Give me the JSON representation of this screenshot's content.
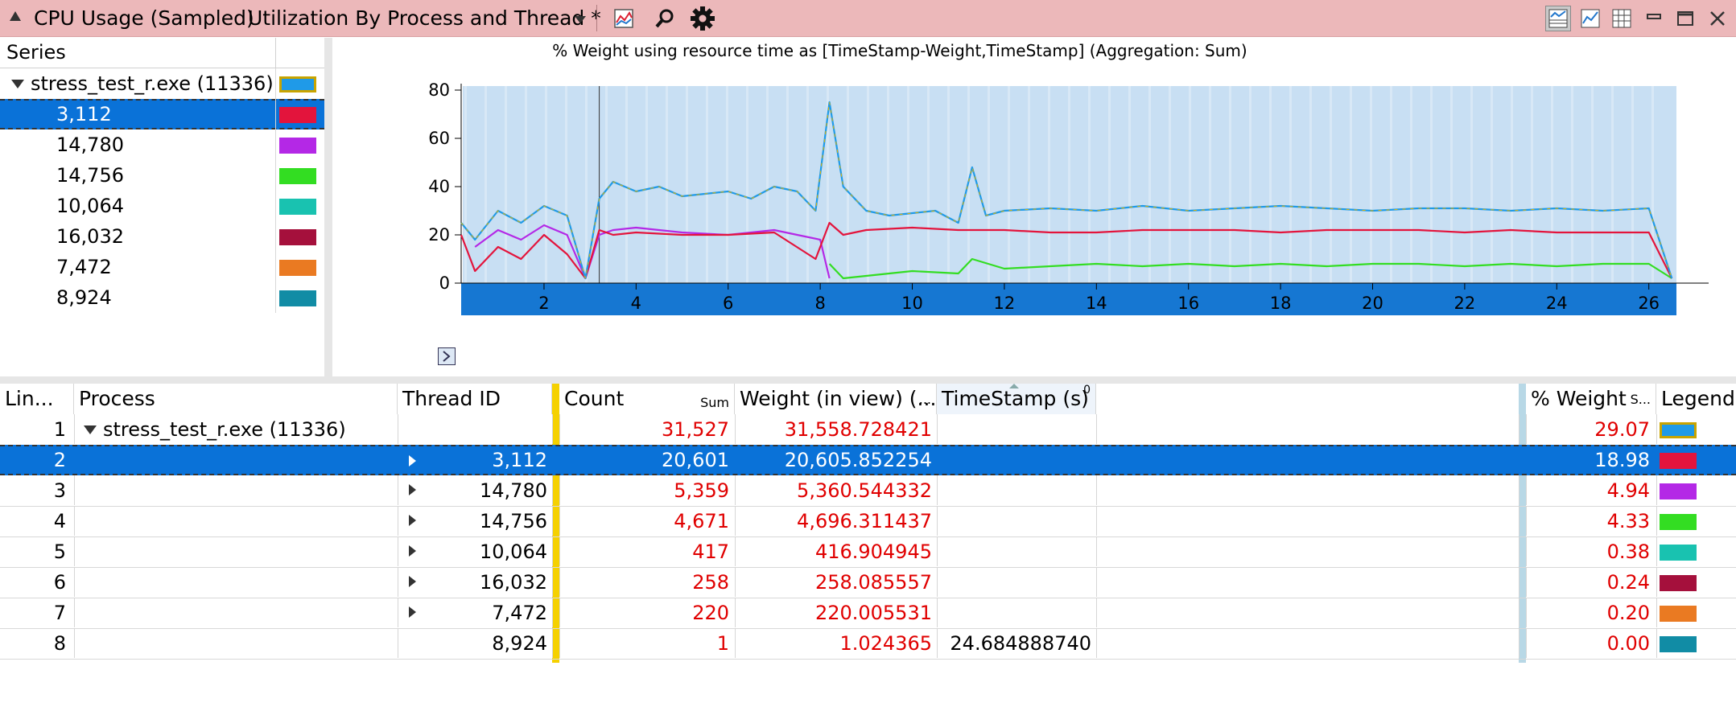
{
  "titlebar": {
    "graph_name": "CPU Usage (Sampled)",
    "preset": "Utilization By Process and Thread *"
  },
  "series_pane": {
    "header": "Series",
    "process": {
      "label": "stress_test_r.exe (11336)",
      "color": "#1f9ae8"
    },
    "threads": [
      {
        "label": "3,112",
        "color": "#e3143c"
      },
      {
        "label": "14,780",
        "color": "#b428e6"
      },
      {
        "label": "14,756",
        "color": "#33dd22"
      },
      {
        "label": "10,064",
        "color": "#19c2b0"
      },
      {
        "label": "16,032",
        "color": "#a5103c"
      },
      {
        "label": "7,472",
        "color": "#ea7a22"
      },
      {
        "label": "8,924",
        "color": "#118ca5"
      }
    ]
  },
  "chart_data": {
    "type": "line",
    "title": "% Weight using resource time as [TimeStamp-Weight,TimeStamp] (Aggregation: Sum)",
    "ylim": [
      0,
      80
    ],
    "yticks": [
      "0",
      "20",
      "40",
      "60",
      "80"
    ],
    "xlim": [
      0.2,
      26.6
    ],
    "xticks": [
      "2",
      "4",
      "6",
      "8",
      "10",
      "12",
      "14",
      "16",
      "18",
      "20",
      "22",
      "24",
      "26"
    ],
    "xtick_values": [
      2,
      4,
      6,
      8,
      10,
      12,
      14,
      16,
      18,
      20,
      22,
      24,
      26
    ],
    "series": [
      {
        "name": "stress_test_r.exe (11336)",
        "color": "#1f9ae8",
        "x": [
          0.2,
          0.5,
          1.0,
          1.5,
          2.0,
          2.5,
          2.9,
          3.2,
          3.5,
          4.0,
          4.5,
          5.0,
          5.5,
          6.0,
          6.5,
          7.0,
          7.5,
          7.9,
          8.2,
          8.5,
          9.0,
          9.5,
          10.0,
          10.5,
          11.0,
          11.3,
          11.6,
          12.0,
          13.0,
          14.0,
          15.0,
          16.0,
          17.0,
          18.0,
          19.0,
          20.0,
          21.0,
          22.0,
          23.0,
          24.0,
          25.0,
          26.0,
          26.5
        ],
        "y": [
          25,
          18,
          30,
          25,
          32,
          28,
          2,
          35,
          42,
          38,
          40,
          36,
          37,
          38,
          35,
          40,
          38,
          30,
          75,
          40,
          30,
          28,
          29,
          30,
          25,
          48,
          28,
          30,
          31,
          30,
          32,
          30,
          31,
          32,
          31,
          30,
          31,
          31,
          30,
          31,
          30,
          31,
          2
        ]
      },
      {
        "name": "3,112",
        "color": "#e3143c",
        "x": [
          0.2,
          0.5,
          1.0,
          1.5,
          2.0,
          2.5,
          2.9,
          3.2,
          3.5,
          4.0,
          5.0,
          6.0,
          7.0,
          7.9,
          8.2,
          8.5,
          9.0,
          10.0,
          11.0,
          12.0,
          13.0,
          14.0,
          15.0,
          16.0,
          17.0,
          18.0,
          19.0,
          20.0,
          21.0,
          22.0,
          23.0,
          24.0,
          25.0,
          26.0,
          26.5
        ],
        "y": [
          20,
          5,
          15,
          10,
          20,
          12,
          2,
          22,
          20,
          21,
          20,
          20,
          21,
          10,
          25,
          20,
          22,
          23,
          22,
          22,
          21,
          21,
          22,
          22,
          22,
          21,
          22,
          22,
          22,
          21,
          22,
          21,
          21,
          21,
          2
        ]
      },
      {
        "name": "14,780",
        "color": "#b428e6",
        "x": [
          0.5,
          1.0,
          1.5,
          2.0,
          2.5,
          2.9,
          3.2,
          3.5,
          4.0,
          5.0,
          6.0,
          7.0,
          7.5,
          8.0,
          8.2
        ],
        "y": [
          15,
          22,
          18,
          24,
          20,
          2,
          20,
          22,
          23,
          21,
          20,
          22,
          20,
          18,
          2
        ]
      },
      {
        "name": "14,756",
        "color": "#33dd22",
        "x": [
          8.2,
          8.5,
          9.0,
          10.0,
          11.0,
          11.3,
          12.0,
          13.0,
          14.0,
          15.0,
          16.0,
          17.0,
          18.0,
          19.0,
          20.0,
          21.0,
          22.0,
          23.0,
          24.0,
          25.0,
          26.0,
          26.5
        ],
        "y": [
          8,
          2,
          3,
          5,
          4,
          10,
          6,
          7,
          8,
          7,
          8,
          7,
          8,
          7,
          8,
          8,
          7,
          8,
          7,
          8,
          8,
          2
        ]
      }
    ]
  },
  "table": {
    "headers": {
      "line": "Lin...",
      "process": "Process",
      "thread": "Thread ID",
      "count": "Count",
      "count_agg": "Sum",
      "weight": "Weight (in view) (...",
      "weight_more": "...",
      "timestamp": "TimeStamp (s)",
      "timestamp_sort": "0",
      "pct_weight": "% Weight",
      "pct_agg": "S...",
      "legend": "Legend"
    },
    "rows": [
      {
        "line": "1",
        "process": "stress_test_r.exe (11336)",
        "thread": "",
        "count": "31,527",
        "weight": "31,558.728421",
        "timestamp": "",
        "pct": "29.07",
        "color": "#1f9ae8"
      },
      {
        "line": "2",
        "process": "",
        "thread": "3,112",
        "count": "20,601",
        "weight": "20,605.852254",
        "timestamp": "",
        "pct": "18.98",
        "color": "#e3143c"
      },
      {
        "line": "3",
        "process": "",
        "thread": "14,780",
        "count": "5,359",
        "weight": "5,360.544332",
        "timestamp": "",
        "pct": "4.94",
        "color": "#b428e6"
      },
      {
        "line": "4",
        "process": "",
        "thread": "14,756",
        "count": "4,671",
        "weight": "4,696.311437",
        "timestamp": "",
        "pct": "4.33",
        "color": "#33dd22"
      },
      {
        "line": "5",
        "process": "",
        "thread": "10,064",
        "count": "417",
        "weight": "416.904945",
        "timestamp": "",
        "pct": "0.38",
        "color": "#19c2b0"
      },
      {
        "line": "6",
        "process": "",
        "thread": "16,032",
        "count": "258",
        "weight": "258.085557",
        "timestamp": "",
        "pct": "0.24",
        "color": "#a5103c"
      },
      {
        "line": "7",
        "process": "",
        "thread": "7,472",
        "count": "220",
        "weight": "220.005531",
        "timestamp": "",
        "pct": "0.20",
        "color": "#ea7a22"
      },
      {
        "line": "8",
        "process": "",
        "thread": "8,924",
        "count": "1",
        "weight": "1.024365",
        "timestamp": "24.684888740",
        "pct": "0.00",
        "color": "#118ca5"
      }
    ]
  }
}
